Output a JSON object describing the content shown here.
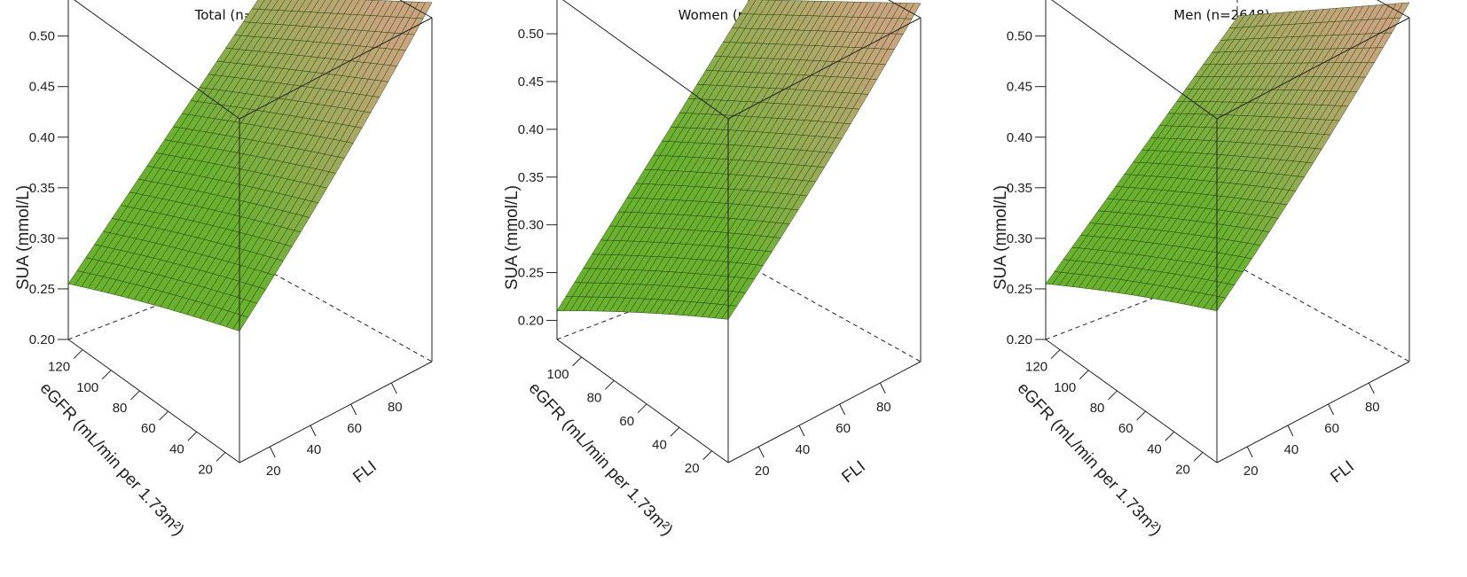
{
  "chart_data": [
    {
      "type": "surface3d",
      "title": "Total (n=3396)",
      "zlabel": "SUA (mmol/L)",
      "ylabel": "eGFR (mL/min per 1.73m²)",
      "xlabel": "FLI",
      "zlim": [
        0.2,
        0.54
      ],
      "ylim": [
        10,
        130
      ],
      "xlim": [
        5,
        100
      ],
      "z_ticks": [
        "0.20",
        "0.25",
        "0.30",
        "0.35",
        "0.40",
        "0.45",
        "0.50"
      ],
      "y_ticks": [
        "20",
        "40",
        "60",
        "80",
        "100",
        "120"
      ],
      "x_ticks": [
        "20",
        "40",
        "60",
        "80"
      ],
      "x": [
        5,
        100
      ],
      "y": [
        10,
        130
      ],
      "corners": {
        "x_low_y_low": 0.33,
        "x_high_y_low": 0.53,
        "x_low_y_high": 0.265,
        "x_high_y_high": 0.44
      }
    },
    {
      "type": "surface3d",
      "title": "Women (n=748)",
      "zlabel": "SUA (mmol/L)",
      "ylabel": "eGFR (mL/min per 1.73m²)",
      "xlabel": "FLI",
      "zlim": [
        0.18,
        0.54
      ],
      "ylim": [
        10,
        115
      ],
      "xlim": [
        5,
        100
      ],
      "z_ticks": [
        "0.20",
        "0.25",
        "0.30",
        "0.35",
        "0.40",
        "0.45",
        "0.50"
      ],
      "y_ticks": [
        "20",
        "40",
        "60",
        "80",
        "100"
      ],
      "x_ticks": [
        "20",
        "40",
        "60",
        "80"
      ],
      "x": [
        5,
        100
      ],
      "y": [
        10,
        115
      ],
      "corners": {
        "x_low_y_low": 0.33,
        "x_high_y_low": 0.53,
        "x_low_y_high": 0.22,
        "x_high_y_high": 0.43
      }
    },
    {
      "type": "surface3d",
      "title": "Men (n=2648)",
      "zlabel": "SUA (mmol/L)",
      "ylabel": "eGFR (mL/min per 1.73m²)",
      "xlabel": "FLI",
      "zlim": [
        0.2,
        0.54
      ],
      "ylim": [
        10,
        130
      ],
      "xlim": [
        5,
        100
      ],
      "z_ticks": [
        "0.20",
        "0.25",
        "0.30",
        "0.35",
        "0.40",
        "0.45",
        "0.50"
      ],
      "y_ticks": [
        "20",
        "40",
        "60",
        "80",
        "100",
        "120"
      ],
      "x_ticks": [
        "20",
        "40",
        "60",
        "80"
      ],
      "x": [
        5,
        100
      ],
      "y": [
        10,
        130
      ],
      "corners": {
        "x_low_y_low": 0.35,
        "x_high_y_low": 0.53,
        "x_low_y_high": 0.265,
        "x_high_y_high": 0.42
      }
    }
  ],
  "colors": {
    "surface_low": "#6ab130",
    "surface_high": "#c9a47e",
    "grid_line": "#1b3a08",
    "axis": "#222222"
  }
}
